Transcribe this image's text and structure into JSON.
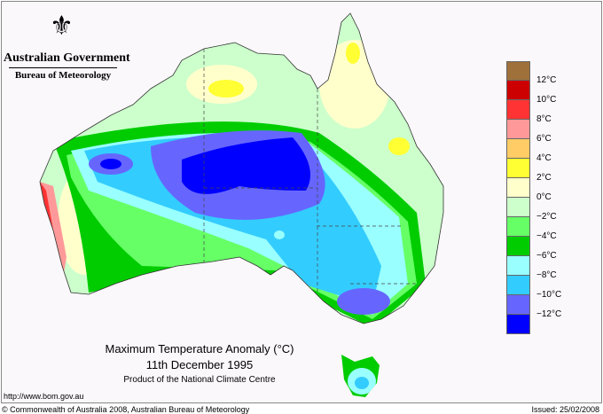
{
  "header": {
    "org": "Australian Government",
    "agency": "Bureau of Meteorology"
  },
  "title": "Maximum Temperature Anomaly (°C)",
  "date": "11th December 1995",
  "product": "Product of the National Climate Centre",
  "url": "http://www.bom.gov.au",
  "copyright": "© Commonwealth of Australia 2008, Australian Bureau of Meteorology",
  "issued": "Issued: 25/02/2008",
  "legend": {
    "colors": [
      "#a0703a",
      "#cc0000",
      "#ff3333",
      "#ff9999",
      "#ffcc66",
      "#ffff33",
      "#ffffcc",
      "#ccffcc",
      "#66ff66",
      "#00cc00",
      "#99ffff",
      "#33ccff",
      "#6666ff",
      "#0000ff"
    ],
    "labels": [
      "12°C",
      "10°C",
      "8°C",
      "6°C",
      "4°C",
      "2°C",
      "0°C",
      "−2°C",
      "−4°C",
      "−6°C",
      "−8°C",
      "−10°C",
      "−12°C"
    ]
  }
}
